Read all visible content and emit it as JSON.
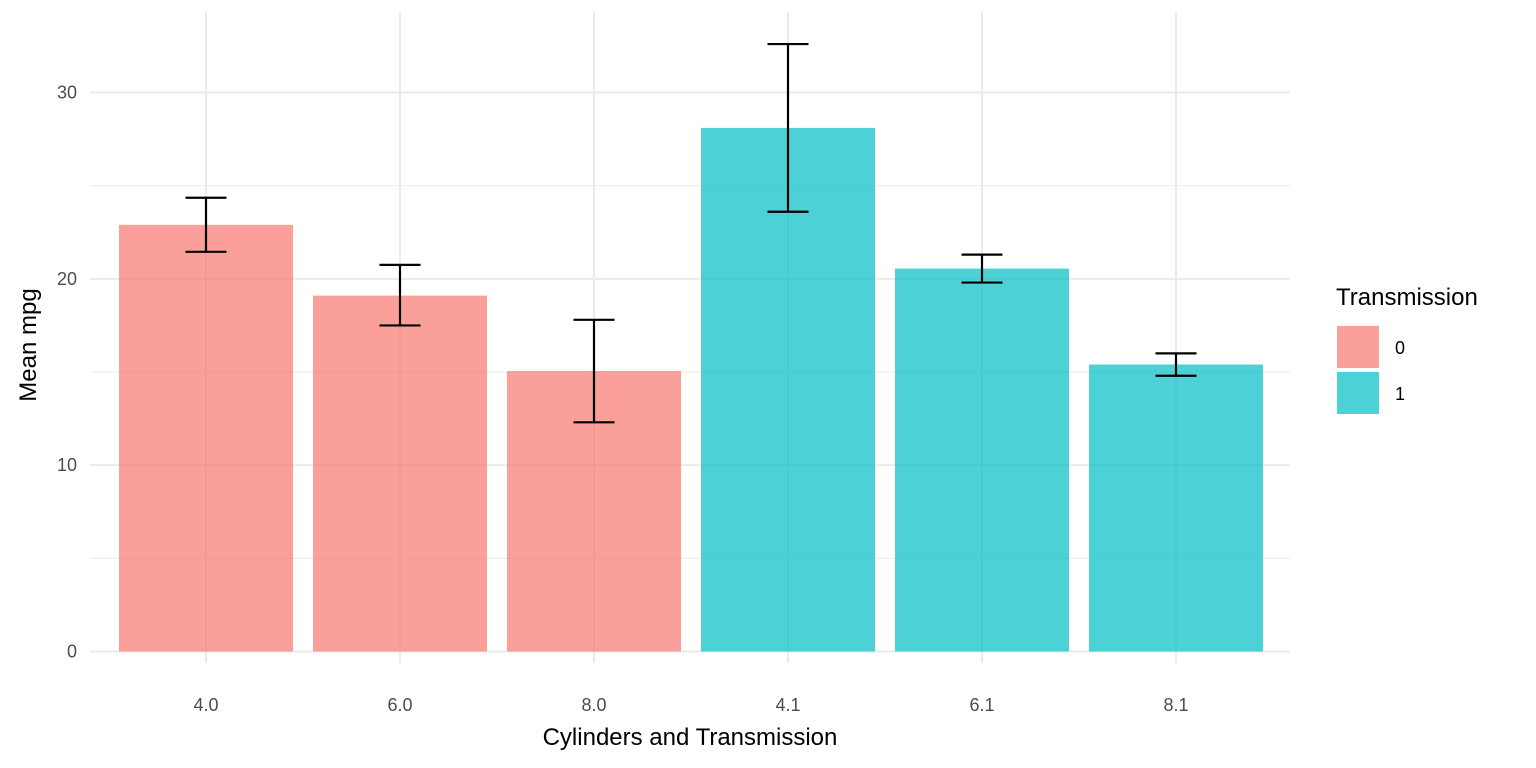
{
  "chart_data": {
    "type": "bar",
    "categories": [
      "4.0",
      "6.0",
      "8.0",
      "4.1",
      "6.1",
      "8.1"
    ],
    "values": [
      22.9,
      19.1,
      15.05,
      28.1,
      20.55,
      15.4
    ],
    "error_low": [
      21.45,
      17.5,
      12.3,
      23.6,
      19.8,
      14.8
    ],
    "error_high": [
      24.35,
      20.75,
      17.8,
      32.6,
      21.3,
      16.0
    ],
    "groups": [
      "0",
      "0",
      "0",
      "1",
      "1",
      "1"
    ],
    "xlabel": "Cylinders and Transmission",
    "ylabel": "Mean mpg",
    "ylim": [
      0,
      33
    ],
    "yticks": [
      0,
      10,
      20,
      30
    ],
    "grid": true,
    "legend": {
      "title": "Transmission",
      "position": "right",
      "entries": [
        {
          "label": "0",
          "color": "#F8766D"
        },
        {
          "label": "1",
          "color": "#00BFC4"
        }
      ]
    },
    "colors": {
      "0": "#F8766D",
      "1": "#00BFC4"
    }
  }
}
